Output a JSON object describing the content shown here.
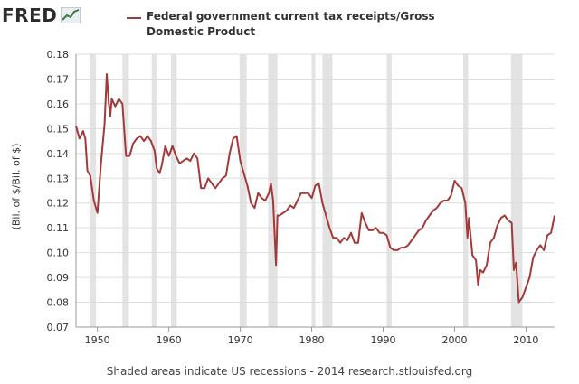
{
  "logo": {
    "text": "FRED",
    "icon": "chart-trend-icon"
  },
  "footer": "Shaded areas indicate US recessions - 2014 research.stlouisfed.org",
  "colors": {
    "series": "#a33a3a",
    "recession": "#e3e3e3",
    "grid": "#dddddd",
    "axis": "#999999"
  },
  "chart_data": {
    "type": "line",
    "title": "",
    "xlabel": "",
    "ylabel": "(Bil. of $/Bil. of $)",
    "xlim": [
      1947,
      2014
    ],
    "ylim": [
      0.07,
      0.18
    ],
    "x_ticks": [
      1950,
      1960,
      1970,
      1980,
      1990,
      2000,
      2010
    ],
    "y_ticks": [
      0.07,
      0.08,
      0.09,
      0.1,
      0.11,
      0.12,
      0.13,
      0.14,
      0.15,
      0.16,
      0.17,
      0.18
    ],
    "grid": true,
    "legend": "top",
    "recessions": [
      [
        1948.9,
        1949.8
      ],
      [
        1953.5,
        1954.4
      ],
      [
        1957.6,
        1958.3
      ],
      [
        1960.3,
        1961.1
      ],
      [
        1969.9,
        1970.9
      ],
      [
        1973.9,
        1975.2
      ],
      [
        1980.0,
        1980.5
      ],
      [
        1981.5,
        1982.9
      ],
      [
        1990.5,
        1991.2
      ],
      [
        2001.2,
        2001.9
      ],
      [
        2007.9,
        2009.5
      ]
    ],
    "series": [
      {
        "name": "Federal government current tax receipts/Gross Domestic Product",
        "x": [
          1947.0,
          1947.5,
          1948.0,
          1948.3,
          1948.6,
          1949.0,
          1949.5,
          1950.0,
          1950.5,
          1951.0,
          1951.3,
          1951.6,
          1951.8,
          1952.0,
          1952.5,
          1953.0,
          1953.5,
          1954.0,
          1954.5,
          1955.0,
          1955.5,
          1956.0,
          1956.5,
          1957.0,
          1957.5,
          1958.0,
          1958.3,
          1958.7,
          1959.0,
          1959.5,
          1960.0,
          1960.5,
          1961.0,
          1961.5,
          1962.0,
          1962.5,
          1963.0,
          1963.5,
          1964.0,
          1964.5,
          1965.0,
          1965.5,
          1966.0,
          1966.5,
          1967.0,
          1967.5,
          1968.0,
          1968.5,
          1969.0,
          1969.5,
          1970.0,
          1970.5,
          1971.0,
          1971.5,
          1972.0,
          1972.5,
          1973.0,
          1973.5,
          1974.0,
          1974.3,
          1974.6,
          1975.0,
          1975.2,
          1975.5,
          1976.0,
          1976.5,
          1977.0,
          1977.5,
          1978.0,
          1978.5,
          1979.0,
          1979.5,
          1980.0,
          1980.5,
          1981.0,
          1981.5,
          1982.0,
          1982.5,
          1983.0,
          1983.5,
          1984.0,
          1984.5,
          1985.0,
          1985.5,
          1986.0,
          1986.5,
          1987.0,
          1987.5,
          1988.0,
          1988.5,
          1989.0,
          1989.5,
          1990.0,
          1990.5,
          1991.0,
          1991.5,
          1992.0,
          1992.5,
          1993.0,
          1993.5,
          1994.0,
          1994.5,
          1995.0,
          1995.5,
          1996.0,
          1996.5,
          1997.0,
          1997.5,
          1998.0,
          1998.5,
          1999.0,
          1999.5,
          2000.0,
          2000.5,
          2001.0,
          2001.5,
          2001.8,
          2002.0,
          2002.5,
          2003.0,
          2003.3,
          2003.6,
          2004.0,
          2004.5,
          2005.0,
          2005.5,
          2006.0,
          2006.5,
          2007.0,
          2007.5,
          2008.0,
          2008.3,
          2008.6,
          2009.0,
          2009.5,
          2010.0,
          2010.5,
          2011.0,
          2011.5,
          2012.0,
          2012.5,
          2013.0,
          2013.5,
          2014.0
        ],
        "y": [
          0.151,
          0.146,
          0.149,
          0.146,
          0.133,
          0.131,
          0.121,
          0.116,
          0.136,
          0.152,
          0.172,
          0.16,
          0.155,
          0.162,
          0.159,
          0.162,
          0.16,
          0.139,
          0.139,
          0.144,
          0.146,
          0.147,
          0.145,
          0.147,
          0.145,
          0.141,
          0.134,
          0.132,
          0.135,
          0.143,
          0.139,
          0.143,
          0.139,
          0.136,
          0.137,
          0.138,
          0.137,
          0.14,
          0.138,
          0.126,
          0.126,
          0.13,
          0.128,
          0.126,
          0.128,
          0.13,
          0.131,
          0.14,
          0.146,
          0.147,
          0.137,
          0.132,
          0.127,
          0.12,
          0.118,
          0.124,
          0.122,
          0.121,
          0.124,
          0.128,
          0.121,
          0.095,
          0.115,
          0.115,
          0.116,
          0.117,
          0.119,
          0.118,
          0.121,
          0.124,
          0.124,
          0.124,
          0.122,
          0.127,
          0.128,
          0.12,
          0.115,
          0.11,
          0.106,
          0.106,
          0.104,
          0.106,
          0.105,
          0.108,
          0.104,
          0.104,
          0.116,
          0.112,
          0.109,
          0.109,
          0.11,
          0.108,
          0.108,
          0.107,
          0.102,
          0.101,
          0.101,
          0.102,
          0.102,
          0.103,
          0.105,
          0.107,
          0.109,
          0.11,
          0.113,
          0.115,
          0.117,
          0.118,
          0.12,
          0.121,
          0.121,
          0.123,
          0.129,
          0.127,
          0.126,
          0.12,
          0.106,
          0.114,
          0.099,
          0.097,
          0.087,
          0.093,
          0.092,
          0.095,
          0.104,
          0.106,
          0.111,
          0.114,
          0.115,
          0.113,
          0.112,
          0.093,
          0.096,
          0.08,
          0.082,
          0.086,
          0.09,
          0.098,
          0.101,
          0.103,
          0.101,
          0.107,
          0.108,
          0.115
        ]
      }
    ]
  }
}
